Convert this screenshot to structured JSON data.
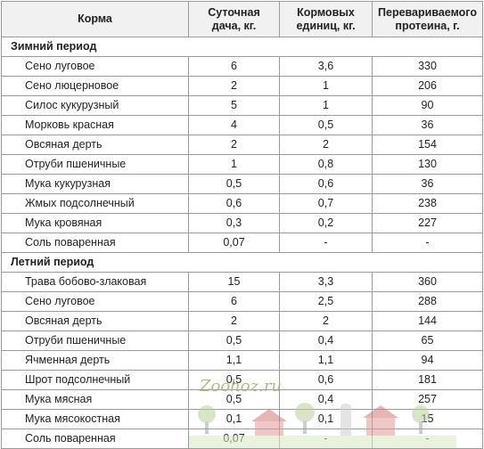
{
  "header": {
    "col1": "Корма",
    "col2": [
      "Суточная",
      "дача, кг."
    ],
    "col3": [
      "Кормовых",
      "единиц, кг."
    ],
    "col4": [
      "Перевариваемого",
      "протеина, г."
    ]
  },
  "sections": [
    {
      "title": "Зимний период",
      "rows": [
        [
          "Сено луговое",
          "6",
          "3,6",
          "330"
        ],
        [
          "Сено люцерновое",
          "2",
          "1",
          "206"
        ],
        [
          "Силос кукурузный",
          "5",
          "1",
          "90"
        ],
        [
          "Морковь красная",
          "4",
          "0,5",
          "36"
        ],
        [
          "Овсяная дерть",
          "2",
          "2",
          "154"
        ],
        [
          "Отруби пшеничные",
          "1",
          "0,8",
          "130"
        ],
        [
          "Мука кукурузная",
          "0,5",
          "0,6",
          "36"
        ],
        [
          "Жмых подсолнечный",
          "0,6",
          "0,7",
          "238"
        ],
        [
          "Мука кровяная",
          "0,3",
          "0,2",
          "227"
        ],
        [
          "Соль поваренная",
          "0,07",
          "-",
          "-"
        ]
      ]
    },
    {
      "title": "Летний период",
      "rows": [
        [
          "Трава бобово-злаковая",
          "15",
          "3,3",
          "360"
        ],
        [
          "Сено луговое",
          "6",
          "2,5",
          "288"
        ],
        [
          "Овсяная дерть",
          "2",
          "2",
          "144"
        ],
        [
          "Отруби пшеничные",
          "0,5",
          "0,4",
          "65"
        ],
        [
          "Ячменная дерть",
          "1,1",
          "1,1",
          "94"
        ],
        [
          "Шрот подсолнечный",
          "0,5",
          "0,6",
          "181"
        ],
        [
          "Мука мясная",
          "0,5",
          "0,4",
          "257"
        ],
        [
          "Мука мясокостная",
          "0,1",
          "0,1",
          "15"
        ],
        [
          "Соль поваренная",
          "0,07",
          "-",
          "-"
        ]
      ]
    }
  ],
  "watermark": "Zoohoz.ru"
}
